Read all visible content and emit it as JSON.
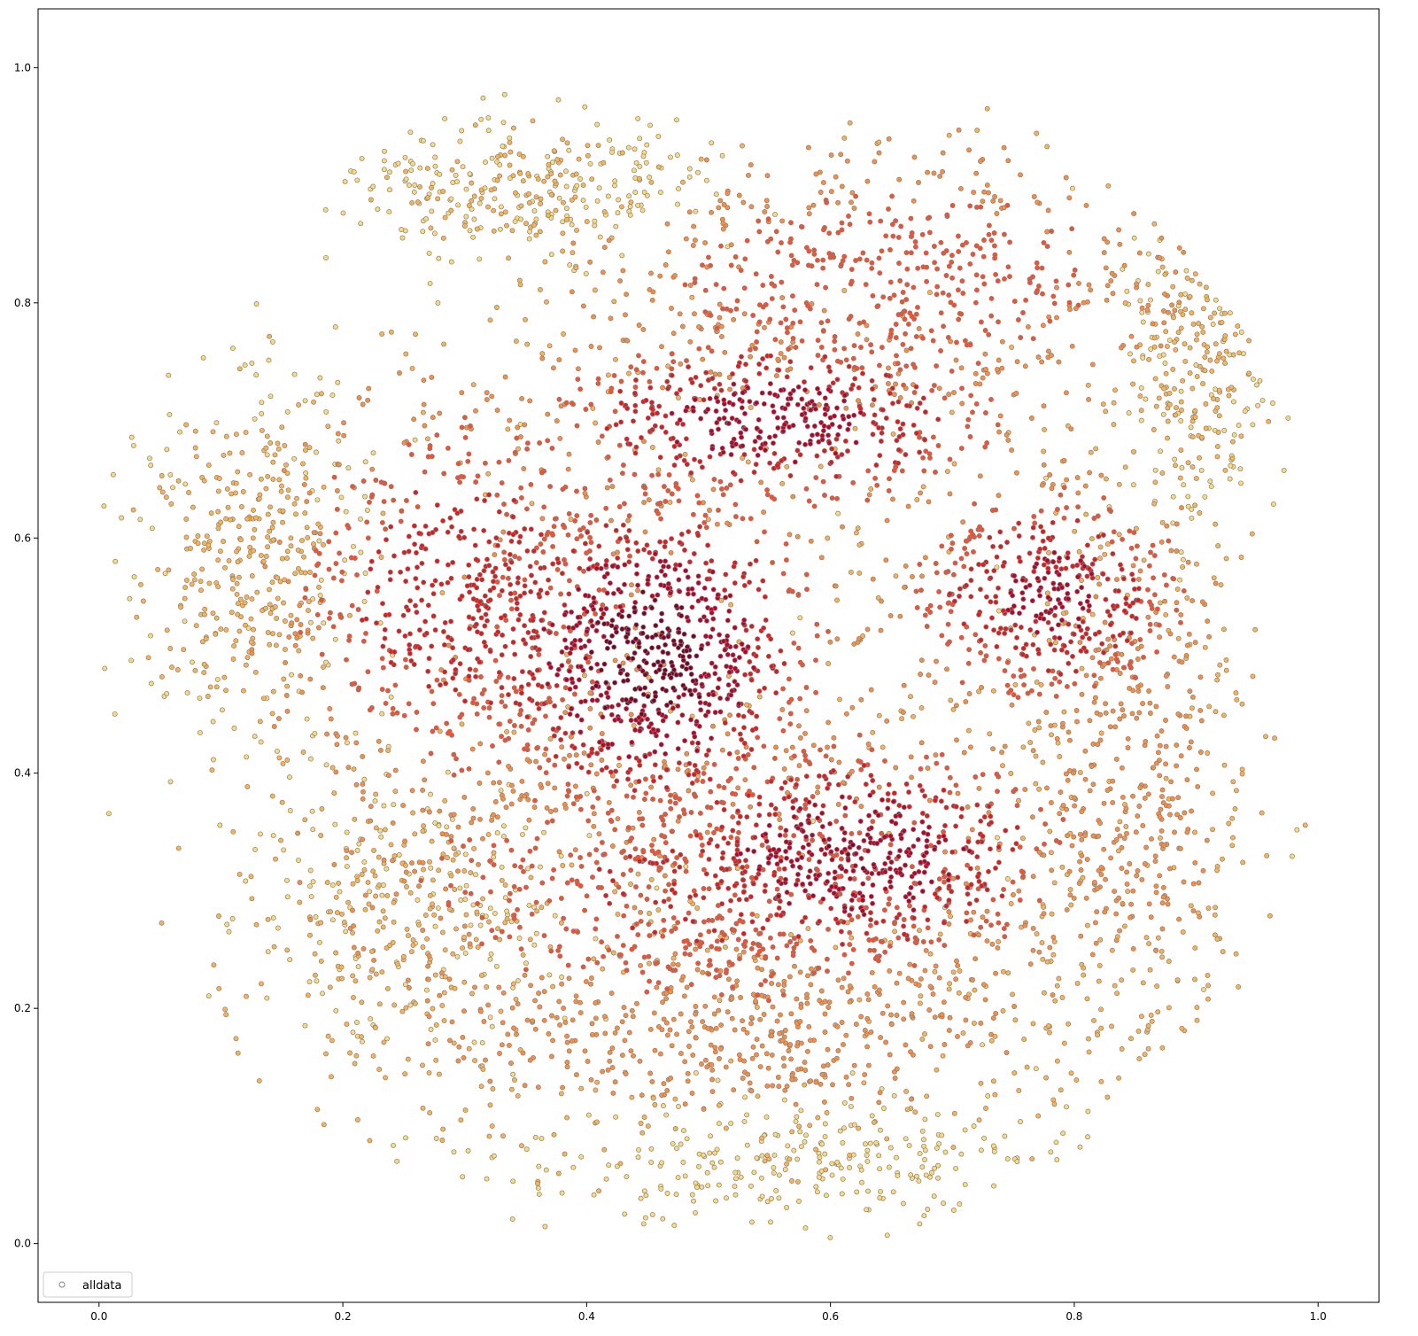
{
  "chart_data": {
    "type": "scatter",
    "title": "",
    "xlabel": "",
    "ylabel": "",
    "xlim": [
      -0.05,
      1.05
    ],
    "ylim": [
      -0.05,
      1.05
    ],
    "xticks": [
      0.0,
      0.2,
      0.4,
      0.6,
      0.8,
      1.0
    ],
    "yticks": [
      0.0,
      0.2,
      0.4,
      0.6,
      0.8,
      1.0
    ],
    "xtick_labels": [
      "0.0",
      "0.2",
      "0.4",
      "0.6",
      "0.8",
      "1.0"
    ],
    "ytick_labels": [
      "0.0",
      "0.2",
      "0.4",
      "0.6",
      "0.8",
      "1.0"
    ],
    "grid": false,
    "legend": {
      "position": "lower-left",
      "entries": [
        "alldata"
      ]
    },
    "marker": {
      "shape": "circle-outline",
      "edge_color": "#808080"
    },
    "colormap": [
      "#ffffcc",
      "#ffeda0",
      "#fed976",
      "#feb24c",
      "#fd8d3c",
      "#fc4e2a",
      "#e31a1c",
      "#bd0026",
      "#800026"
    ],
    "series": [
      {
        "name": "alldata",
        "description": "Dense point cloud forming a roughly circular blob; points coloured by local density (dark red core near (0.45, 0.5), fading to pale yellow at the rim)",
        "clusters": [
          {
            "cx": 0.45,
            "cy": 0.5,
            "sx": 0.07,
            "sy": 0.07,
            "n": 900,
            "density": 1.0
          },
          {
            "cx": 0.62,
            "cy": 0.33,
            "sx": 0.09,
            "sy": 0.05,
            "n": 700,
            "density": 0.9
          },
          {
            "cx": 0.55,
            "cy": 0.7,
            "sx": 0.1,
            "sy": 0.04,
            "n": 600,
            "density": 0.85
          },
          {
            "cx": 0.78,
            "cy": 0.55,
            "sx": 0.06,
            "sy": 0.05,
            "n": 500,
            "density": 0.8
          },
          {
            "cx": 0.3,
            "cy": 0.55,
            "sx": 0.08,
            "sy": 0.09,
            "n": 700,
            "density": 0.7
          },
          {
            "cx": 0.5,
            "cy": 0.3,
            "sx": 0.16,
            "sy": 0.07,
            "n": 800,
            "density": 0.6
          },
          {
            "cx": 0.65,
            "cy": 0.82,
            "sx": 0.13,
            "sy": 0.06,
            "n": 650,
            "density": 0.55
          },
          {
            "cx": 0.52,
            "cy": 0.18,
            "sx": 0.18,
            "sy": 0.05,
            "n": 600,
            "density": 0.35
          },
          {
            "cx": 0.85,
            "cy": 0.4,
            "sx": 0.05,
            "sy": 0.12,
            "n": 450,
            "density": 0.35
          },
          {
            "cx": 0.12,
            "cy": 0.58,
            "sx": 0.05,
            "sy": 0.08,
            "n": 400,
            "density": 0.15
          },
          {
            "cx": 0.35,
            "cy": 0.9,
            "sx": 0.07,
            "sy": 0.03,
            "n": 300,
            "density": 0.1
          },
          {
            "cx": 0.25,
            "cy": 0.28,
            "sx": 0.06,
            "sy": 0.05,
            "n": 300,
            "density": 0.12
          },
          {
            "cx": 0.9,
            "cy": 0.75,
            "sx": 0.03,
            "sy": 0.07,
            "n": 250,
            "density": 0.12
          },
          {
            "cx": 0.58,
            "cy": 0.07,
            "sx": 0.12,
            "sy": 0.03,
            "n": 300,
            "density": 0.05
          }
        ]
      }
    ]
  }
}
